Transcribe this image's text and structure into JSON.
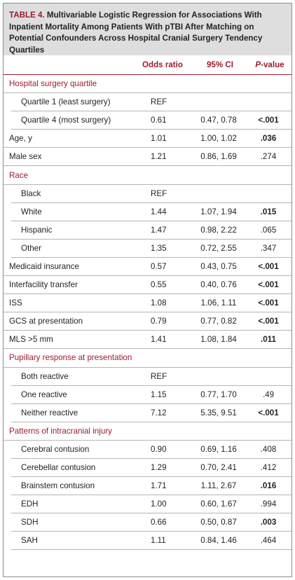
{
  "table": {
    "label": "TABLE 4.",
    "title": "Multivariable Logistic Regression for Associations With Inpatient Mortality Among Patients With pTBI After Matching on Potential Confounders Across Hospital Cranial Surgery Tendency Quartiles",
    "columns": {
      "odds": "Odds ratio",
      "ci": "95% CI",
      "p_italic": "P",
      "p_rest": "-value"
    },
    "rows": [
      {
        "type": "section",
        "label": "Hospital surgery quartile"
      },
      {
        "type": "sub",
        "label": "Quartile 1 (least surgery)",
        "or": "REF",
        "ci": "",
        "p": "",
        "bold": false
      },
      {
        "type": "sub",
        "label": "Quartile 4 (most surgery)",
        "or": "0.61",
        "ci": "0.47, 0.78",
        "p": "<.001",
        "bold": true
      },
      {
        "type": "main",
        "label": "Age, y",
        "or": "1.01",
        "ci": "1.00, 1.02",
        "p": ".036",
        "bold": true
      },
      {
        "type": "main",
        "label": "Male sex",
        "or": "1.21",
        "ci": "0.86, 1.69",
        "p": ".274",
        "bold": false
      },
      {
        "type": "section",
        "label": "Race"
      },
      {
        "type": "sub",
        "label": "Black",
        "or": "REF",
        "ci": "",
        "p": "",
        "bold": false
      },
      {
        "type": "sub",
        "label": "White",
        "or": "1.44",
        "ci": "1.07, 1.94",
        "p": ".015",
        "bold": true
      },
      {
        "type": "sub",
        "label": "Hispanic",
        "or": "1.47",
        "ci": "0.98, 2.22",
        "p": ".065",
        "bold": false
      },
      {
        "type": "sub",
        "label": "Other",
        "or": "1.35",
        "ci": "0.72, 2.55",
        "p": ".347",
        "bold": false
      },
      {
        "type": "main",
        "label": "Medicaid insurance",
        "or": "0.57",
        "ci": "0.43, 0.75",
        "p": "<.001",
        "bold": true
      },
      {
        "type": "main",
        "label": "Interfacility transfer",
        "or": "0.55",
        "ci": "0.40, 0.76",
        "p": "<.001",
        "bold": true
      },
      {
        "type": "main",
        "label": "ISS",
        "or": "1.08",
        "ci": "1.06, 1.11",
        "p": "<.001",
        "bold": true
      },
      {
        "type": "main",
        "label": "GCS at presentation",
        "or": "0.79",
        "ci": "0.77, 0.82",
        "p": "<.001",
        "bold": true
      },
      {
        "type": "main",
        "label": "MLS >5 mm",
        "or": "1.41",
        "ci": "1.08, 1.84",
        "p": ".011",
        "bold": true
      },
      {
        "type": "section",
        "label": "Pupillary response at presentation"
      },
      {
        "type": "sub",
        "label": "Both reactive",
        "or": "REF",
        "ci": "",
        "p": "",
        "bold": false
      },
      {
        "type": "sub",
        "label": "One reactive",
        "or": "1.15",
        "ci": "0.77, 1.70",
        "p": ".49",
        "bold": false
      },
      {
        "type": "sub",
        "label": "Neither reactive",
        "or": "7.12",
        "ci": "5.35, 9.51",
        "p": "<.001",
        "bold": true
      },
      {
        "type": "section",
        "label": "Patterns of intracranial injury"
      },
      {
        "type": "sub",
        "label": "Cerebral contusion",
        "or": "0.90",
        "ci": "0.69, 1.16",
        "p": ".408",
        "bold": false
      },
      {
        "type": "sub",
        "label": "Cerebellar contusion",
        "or": "1.29",
        "ci": "0.70, 2.41",
        "p": ".412",
        "bold": false
      },
      {
        "type": "sub",
        "label": "Brainstem contusion",
        "or": "1.71",
        "ci": "1.11, 2.67",
        "p": ".016",
        "bold": true
      },
      {
        "type": "sub",
        "label": "EDH",
        "or": "1.00",
        "ci": "0.60, 1.67",
        "p": ".994",
        "bold": false
      },
      {
        "type": "sub",
        "label": "SDH",
        "or": "0.66",
        "ci": "0.50, 0.87",
        "p": ".003",
        "bold": true
      },
      {
        "type": "sub",
        "label": "SAH",
        "or": "1.11",
        "ci": "0.84, 1.46",
        "p": ".464",
        "bold": false
      }
    ]
  },
  "colors": {
    "accent": "#9c1c2e",
    "caption_bg": "#dedede",
    "rule": "#b5b5b5"
  }
}
